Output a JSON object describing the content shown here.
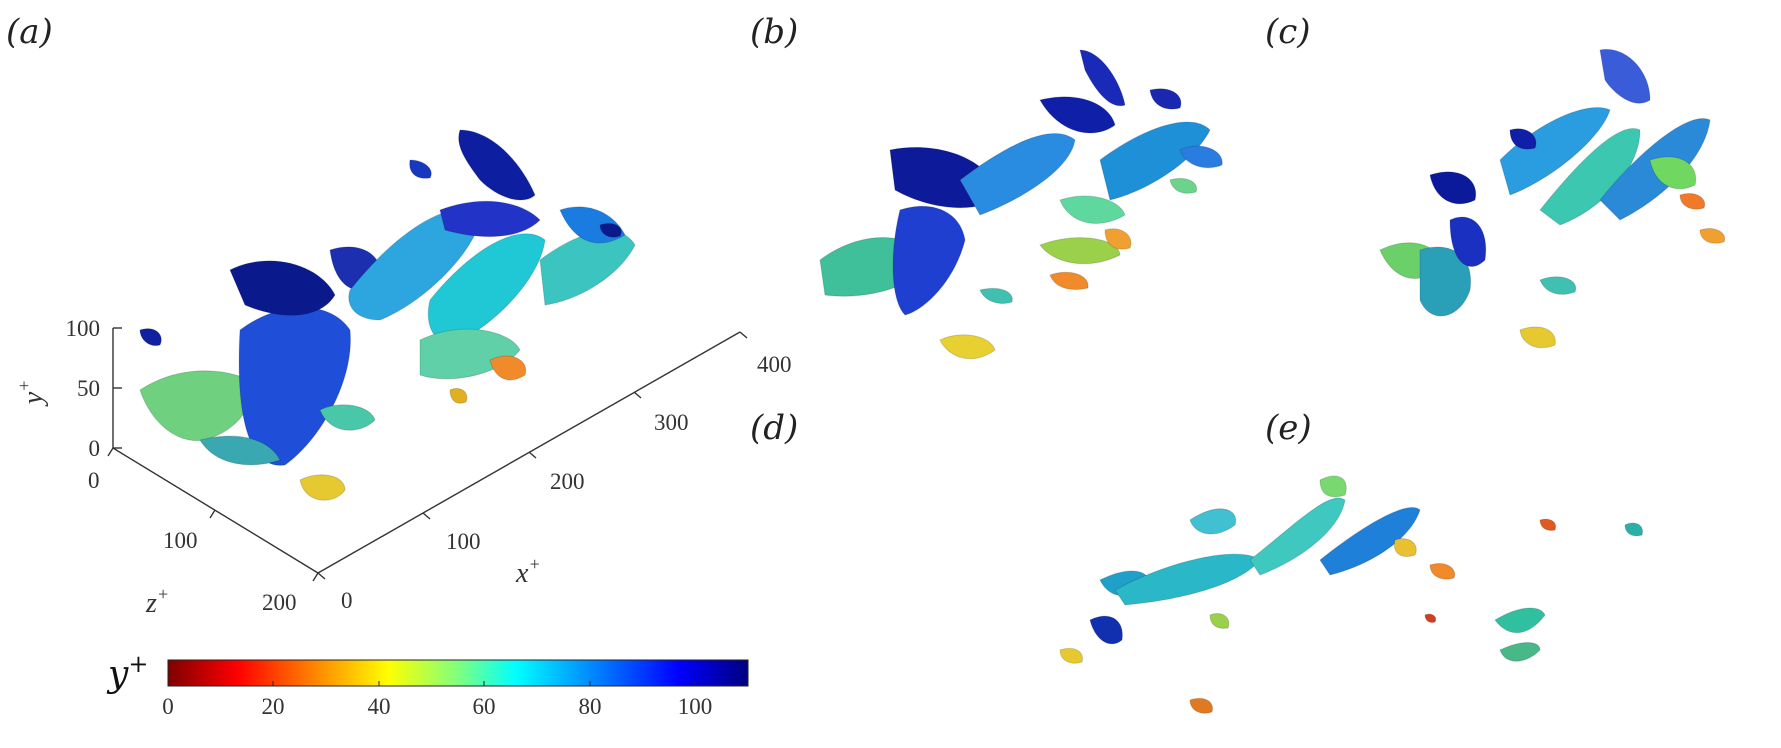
{
  "panels": [
    {
      "id": "a",
      "label": "(a)"
    },
    {
      "id": "b",
      "label": "(b)"
    },
    {
      "id": "c",
      "label": "(c)"
    },
    {
      "id": "d",
      "label": "(d)"
    },
    {
      "id": "e",
      "label": "(e)"
    }
  ],
  "axes": {
    "x_label": "x",
    "x_sup": "+",
    "y_label": "y",
    "y_sup": "+",
    "z_label": "z",
    "z_sup": "+",
    "x_ticks": [
      "0",
      "100",
      "200",
      "300",
      "400"
    ],
    "y_ticks": [
      "0",
      "50",
      "100"
    ],
    "z_ticks": [
      "0",
      "100",
      "200"
    ]
  },
  "colorbar": {
    "label": "y",
    "label_sup": "+",
    "ticks": [
      "0",
      "20",
      "40",
      "60",
      "80",
      "100"
    ],
    "range": [
      0,
      110
    ],
    "colormap": "jet-reversed",
    "colors": [
      "#7f0000",
      "#ff0000",
      "#ff8c00",
      "#ffff00",
      "#7fff7f",
      "#00ffff",
      "#0080ff",
      "#0000ff",
      "#00007f"
    ]
  }
}
